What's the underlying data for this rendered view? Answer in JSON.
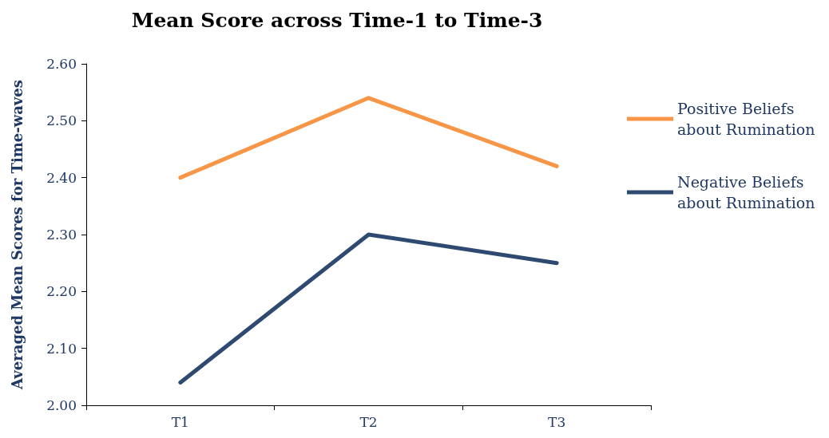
{
  "chart_data": {
    "type": "line",
    "title": "Mean Score across Time-1 to Time-3",
    "ylabel": "Averaged Mean Scores for Time-waves",
    "categories": [
      "T1",
      "T2",
      "T3"
    ],
    "series": [
      {
        "name": "Positive Beliefs about Rumination",
        "color": "#f79646",
        "values": [
          2.4,
          2.54,
          2.42
        ]
      },
      {
        "name": "Negative Beliefs about Rumination",
        "color": "#2e4a70",
        "values": [
          2.04,
          2.3,
          2.25
        ]
      }
    ],
    "ylim": [
      2.0,
      2.6
    ],
    "yticks": [
      {
        "value": 2.0,
        "label": "2.00"
      },
      {
        "value": 2.1,
        "label": "2.10"
      },
      {
        "value": 2.2,
        "label": "2.20"
      },
      {
        "value": 2.3,
        "label": "2.30"
      },
      {
        "value": 2.4,
        "label": "2.40"
      },
      {
        "value": 2.5,
        "label": "2.50"
      },
      {
        "value": 2.6,
        "label": "2.60"
      }
    ],
    "grid": false,
    "legend": "right",
    "marker": "none",
    "line_style": "solid"
  }
}
